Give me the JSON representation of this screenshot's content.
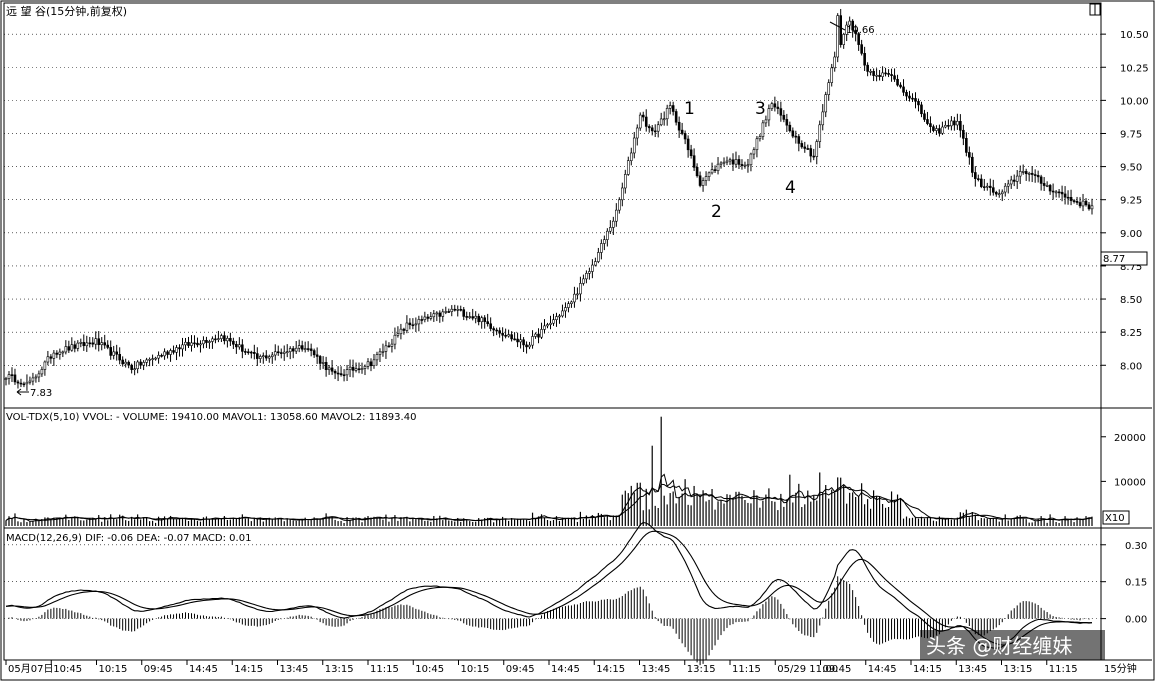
{
  "window_button": "□",
  "price_panel": {
    "title": "远 望 谷(15分钟,前复权)",
    "y_ticks": [
      "10.50",
      "10.25",
      "10.00",
      "9.75",
      "9.50",
      "9.25",
      "9.00",
      "8.77",
      "8.75",
      "8.50",
      "8.25",
      "8.00"
    ],
    "y_tick_values": [
      10.5,
      10.25,
      10.0,
      9.75,
      9.5,
      9.25,
      9.0,
      8.77,
      8.75,
      8.5,
      8.25,
      8.0
    ],
    "current_price_label": "8.77",
    "high_label": "10.66",
    "low_label": "7.83",
    "wave_labels": [
      "1",
      "2",
      "3",
      "4"
    ]
  },
  "volume_panel": {
    "header": "VOL-TDX(5,10) VVOL: -    VOLUME: 19410.00  MAVOL1: 13058.60  MAVOL2: 11893.40",
    "y_ticks": [
      "20000",
      "10000"
    ],
    "y_tick_values": [
      20000,
      10000
    ],
    "scale_badge": "X10"
  },
  "macd_panel": {
    "header": "MACD(12,26,9)  DIF: -0.06  DEA: -0.07  MACD: 0.01",
    "y_ticks": [
      "0.30",
      "0.15",
      "0.00"
    ],
    "y_tick_values": [
      0.3,
      0.15,
      0.0
    ]
  },
  "time_axis": {
    "labels": [
      "05月07日",
      "10:45",
      "10:15",
      "09:45",
      "14:45",
      "14:15",
      "13:45",
      "13:15",
      "11:15",
      "10:45",
      "10:15",
      "09:45",
      "14:45",
      "14:15",
      "13:45",
      "13:15",
      "11:15",
      "05/29 11:00",
      "09:45",
      "14:45",
      "14:15",
      "13:45",
      "13:15",
      "11:15"
    ],
    "unit_label": "15分钟"
  },
  "watermark": "头条 @财经缠妹",
  "chart_data": {
    "type": "candlestick",
    "price_range": [
      7.7,
      10.72
    ],
    "volume_range": [
      0,
      26000
    ],
    "macd_range": [
      -0.16,
      0.36
    ],
    "grid": "dotted-horizontal",
    "keypoints": [
      [
        0,
        7.92
      ],
      [
        8,
        7.86
      ],
      [
        16,
        8.1
      ],
      [
        30,
        8.18
      ],
      [
        42,
        7.98
      ],
      [
        58,
        8.14
      ],
      [
        72,
        8.22
      ],
      [
        84,
        8.05
      ],
      [
        100,
        8.15
      ],
      [
        110,
        7.92
      ],
      [
        122,
        8.02
      ],
      [
        134,
        8.3
      ],
      [
        150,
        8.42
      ],
      [
        158,
        8.35
      ],
      [
        168,
        8.22
      ],
      [
        174,
        8.15
      ],
      [
        188,
        8.45
      ],
      [
        196,
        8.75
      ],
      [
        204,
        9.15
      ],
      [
        212,
        9.9
      ],
      [
        216,
        9.75
      ],
      [
        222,
        9.95
      ],
      [
        226,
        9.75
      ],
      [
        232,
        9.38
      ],
      [
        240,
        9.55
      ],
      [
        248,
        9.52
      ],
      [
        256,
        9.98
      ],
      [
        264,
        9.72
      ],
      [
        270,
        9.58
      ],
      [
        276,
        10.25
      ],
      [
        282,
        10.62
      ],
      [
        288,
        10.22
      ],
      [
        296,
        10.18
      ],
      [
        304,
        9.98
      ],
      [
        310,
        9.75
      ],
      [
        318,
        9.85
      ],
      [
        324,
        9.4
      ],
      [
        332,
        9.28
      ],
      [
        340,
        9.48
      ],
      [
        348,
        9.35
      ],
      [
        356,
        9.25
      ],
      [
        362,
        9.2
      ]
    ],
    "wave_points": [
      {
        "label": "1",
        "index": 224,
        "price": 9.98
      },
      {
        "label": "2",
        "index": 236,
        "price": 9.3
      },
      {
        "label": "3",
        "index": 252,
        "price": 9.98
      },
      {
        "label": "4",
        "index": 263,
        "price": 9.55
      }
    ],
    "high": {
      "price": 10.66,
      "index": 278
    },
    "low": {
      "price": 7.83,
      "index": 6
    }
  }
}
